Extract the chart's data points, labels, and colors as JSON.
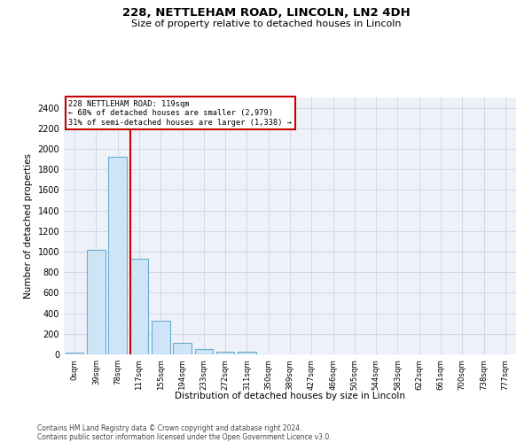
{
  "title1": "228, NETTLEHAM ROAD, LINCOLN, LN2 4DH",
  "title2": "Size of property relative to detached houses in Lincoln",
  "xlabel": "Distribution of detached houses by size in Lincoln",
  "ylabel": "Number of detached properties",
  "bar_labels": [
    "0sqm",
    "39sqm",
    "78sqm",
    "117sqm",
    "155sqm",
    "194sqm",
    "233sqm",
    "272sqm",
    "311sqm",
    "350sqm",
    "389sqm",
    "427sqm",
    "466sqm",
    "505sqm",
    "544sqm",
    "583sqm",
    "622sqm",
    "661sqm",
    "700sqm",
    "738sqm",
    "777sqm"
  ],
  "bar_values": [
    20,
    1020,
    1920,
    935,
    325,
    110,
    50,
    30,
    25,
    0,
    0,
    0,
    0,
    0,
    0,
    0,
    0,
    0,
    0,
    0,
    0
  ],
  "bar_color": "#d0e4f7",
  "bar_edge_color": "#6aadcf",
  "annotation_line1": "228 NETTLEHAM ROAD: 119sqm",
  "annotation_line2": "← 68% of detached houses are smaller (2,979)",
  "annotation_line3": "31% of semi-detached houses are larger (1,338) →",
  "annotation_box_color": "#ffffff",
  "annotation_box_edge_color": "#cc0000",
  "vline_color": "#cc0000",
  "ylim": [
    0,
    2500
  ],
  "yticks": [
    0,
    200,
    400,
    600,
    800,
    1000,
    1200,
    1400,
    1600,
    1800,
    2000,
    2200,
    2400
  ],
  "grid_color": "#d0d8e8",
  "bg_color": "#eef2f8",
  "footer1": "Contains HM Land Registry data © Crown copyright and database right 2024.",
  "footer2": "Contains public sector information licensed under the Open Government Licence v3.0."
}
